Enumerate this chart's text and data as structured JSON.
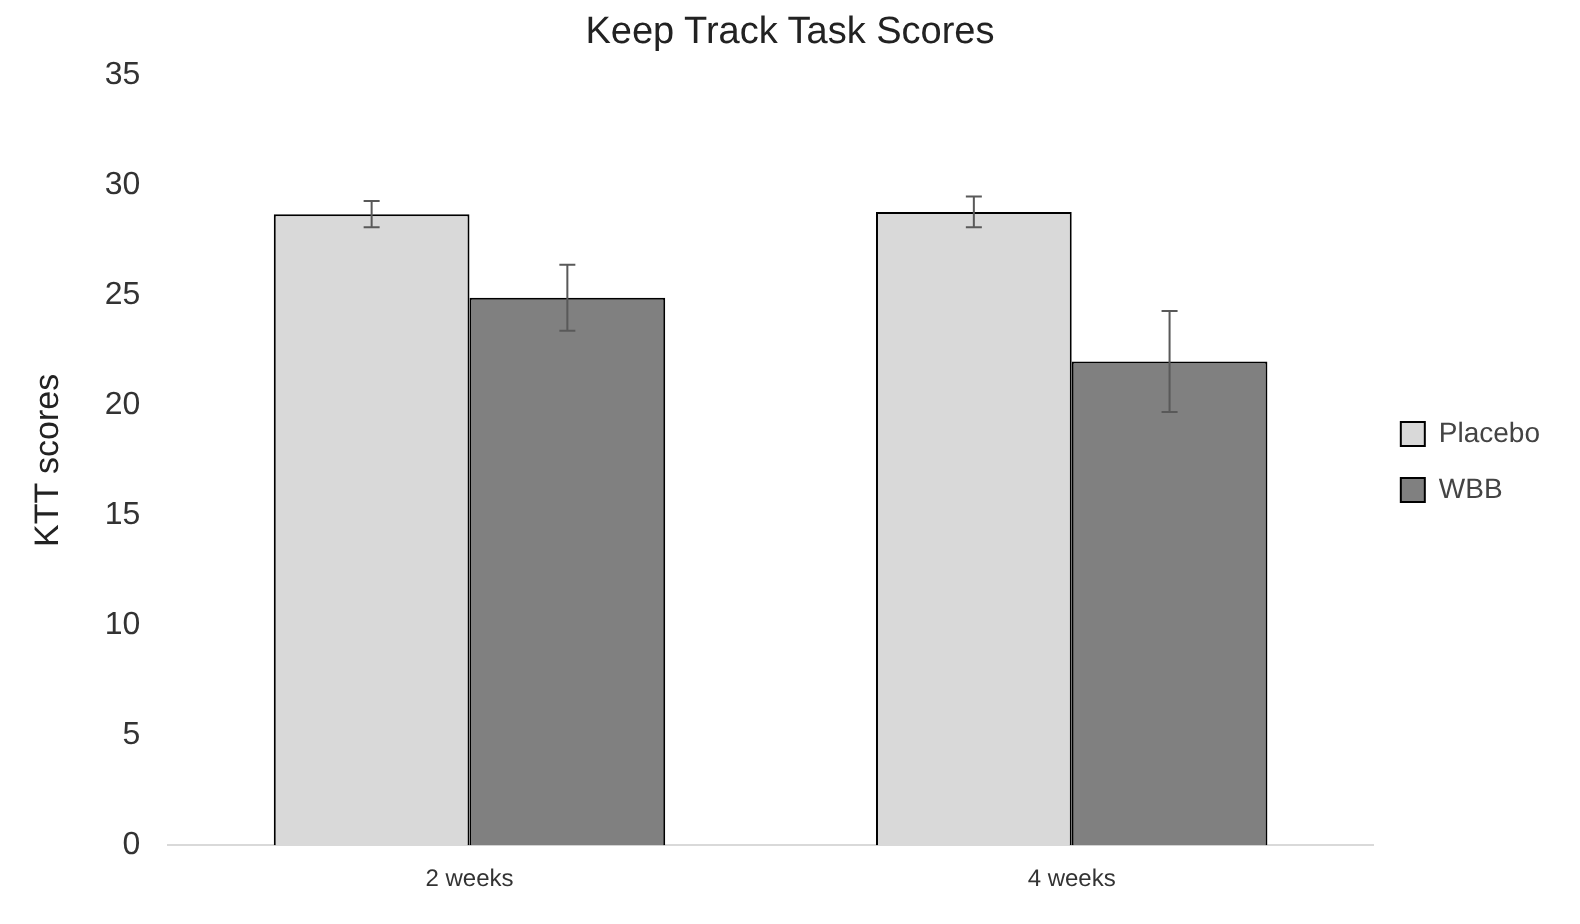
{
  "chart_data": {
    "type": "bar",
    "title": "Keep Track Task Scores",
    "ylabel": "KTT scores",
    "categories": [
      "2 weeks",
      "4 weeks"
    ],
    "series": [
      {
        "name": "Placebo",
        "color": "#d9d9d9",
        "values": [
          28.7,
          28.8
        ],
        "errors": [
          0.6,
          0.7
        ]
      },
      {
        "name": "WBB",
        "color": "#808080",
        "values": [
          24.9,
          22.0
        ],
        "errors": [
          1.5,
          2.3
        ]
      }
    ],
    "ylim": [
      0,
      35
    ],
    "yticks": [
      0,
      5,
      10,
      15,
      20,
      25,
      30,
      35
    ],
    "grid": false,
    "legend": "right"
  }
}
